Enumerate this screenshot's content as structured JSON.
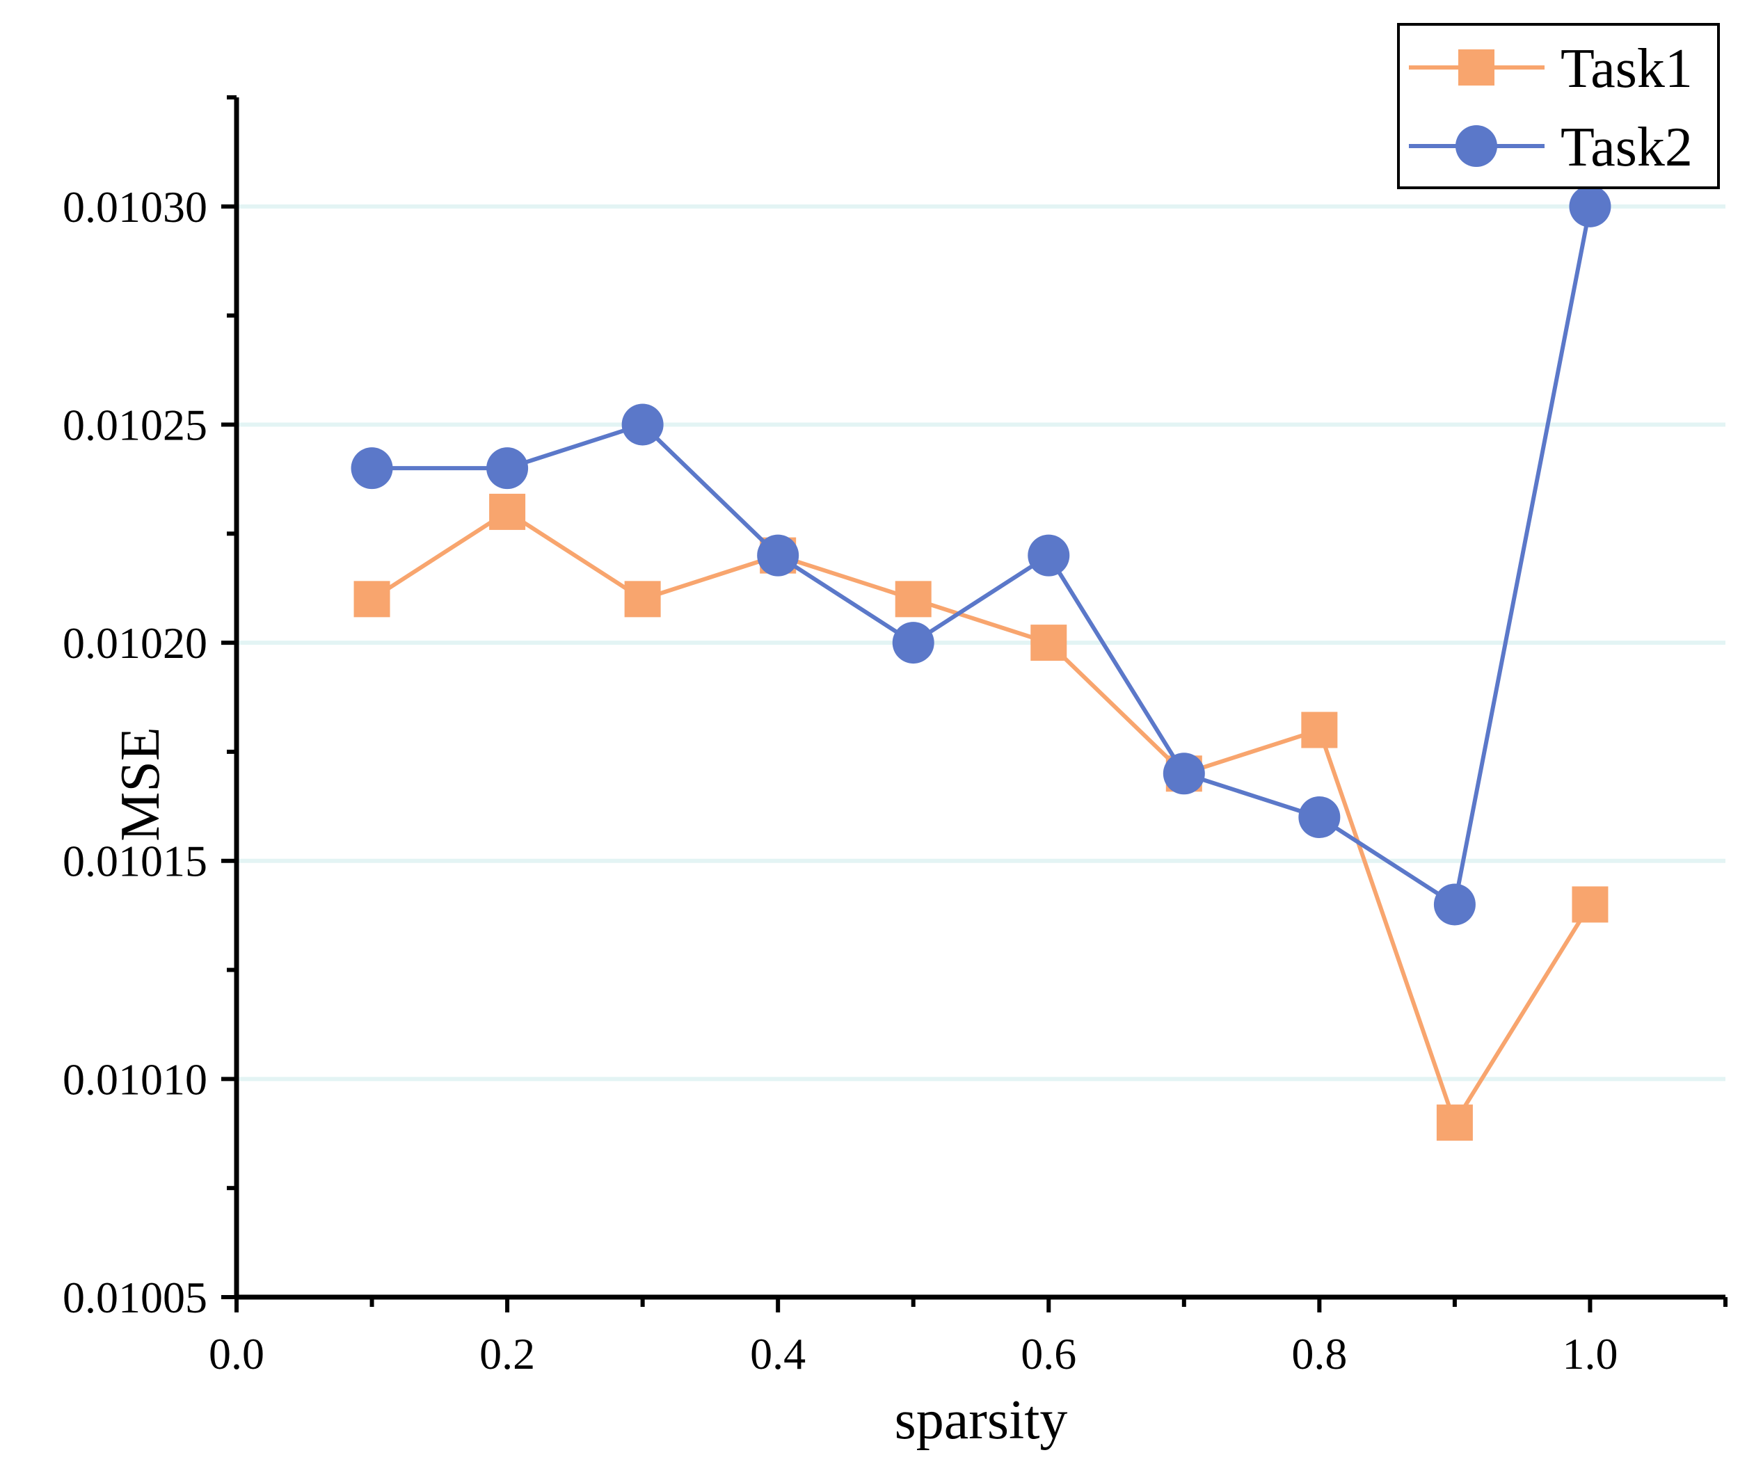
{
  "chart_data": {
    "type": "line",
    "title": "",
    "xlabel": "sparsity",
    "ylabel": "MSE",
    "xlim": [
      0.0,
      1.1
    ],
    "ylim": [
      0.01005,
      0.010325
    ],
    "x_ticks": [
      0.0,
      0.2,
      0.4,
      0.6,
      0.8,
      1.0
    ],
    "x_tick_labels": [
      "0.0",
      "0.2",
      "0.4",
      "0.6",
      "0.8",
      "1.0"
    ],
    "x_minor_ticks": [
      0.1,
      0.3,
      0.5,
      0.7,
      0.9,
      1.1
    ],
    "y_ticks": [
      0.01005,
      0.0101,
      0.01015,
      0.0102,
      0.01025,
      0.0103
    ],
    "y_tick_labels": [
      "0.01005",
      "0.01010",
      "0.01015",
      "0.01020",
      "0.01025",
      "0.01030"
    ],
    "y_minor_ticks": [
      0.010075,
      0.010125,
      0.010175,
      0.010225,
      0.010275,
      0.010325
    ],
    "gridlines": [
      0.0101,
      0.01015,
      0.0102,
      0.01025,
      0.0103
    ],
    "grid_color": "#e3f4f4",
    "legend_position": "top-right",
    "x": [
      0.1,
      0.2,
      0.3,
      0.4,
      0.5,
      0.6,
      0.7,
      0.8,
      0.9,
      1.0
    ],
    "series": [
      {
        "name": "Task1",
        "marker": "square",
        "color": "#f8a56e",
        "values": [
          0.01021,
          0.01023,
          0.01021,
          0.01022,
          0.01021,
          0.0102,
          0.01017,
          0.01018,
          0.01009,
          0.01014
        ]
      },
      {
        "name": "Task2",
        "marker": "circle",
        "color": "#5b78c9",
        "values": [
          0.01024,
          0.01024,
          0.01025,
          0.01022,
          0.0102,
          0.01022,
          0.01017,
          0.01016,
          0.01014,
          0.0103
        ]
      }
    ]
  }
}
